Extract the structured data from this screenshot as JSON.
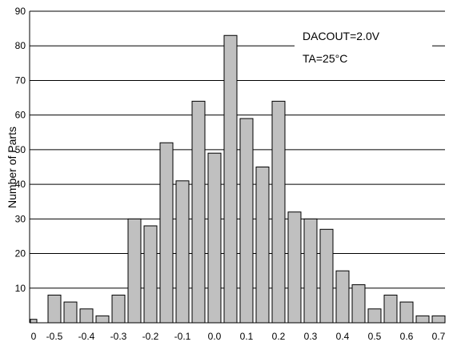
{
  "chart_data": {
    "type": "bar",
    "title": "",
    "xlabel": "",
    "ylabel": "Number of Parts",
    "ylim": [
      0,
      90
    ],
    "yticks": [
      0,
      10,
      20,
      30,
      40,
      50,
      60,
      70,
      80,
      90
    ],
    "xticks": [
      "0",
      "-0.5",
      "-0.4",
      "-0.3",
      "-0.2",
      "-0.1",
      "0.0",
      "0.1",
      "0.2",
      "0.3",
      "0.4",
      "0.5",
      "0.6",
      "0.7"
    ],
    "x": [
      -0.55,
      -0.5,
      -0.45,
      -0.4,
      -0.35,
      -0.3,
      -0.25,
      -0.2,
      -0.15,
      -0.1,
      -0.05,
      0.0,
      0.05,
      0.1,
      0.15,
      0.2,
      0.25,
      0.3,
      0.35,
      0.4,
      0.45,
      0.5,
      0.55,
      0.6,
      0.65,
      0.7
    ],
    "values": [
      1,
      8,
      6,
      4,
      2,
      8,
      30,
      28,
      52,
      41,
      64,
      49,
      83,
      59,
      45,
      64,
      32,
      30,
      27,
      15,
      11,
      4,
      8,
      6,
      2,
      2
    ],
    "grid": "horizontal",
    "colors": {
      "bar": "#c0c0c0",
      "stroke": "#000000"
    },
    "annotations": [
      "DACOUT=2.0V",
      "TA=25°C"
    ]
  }
}
